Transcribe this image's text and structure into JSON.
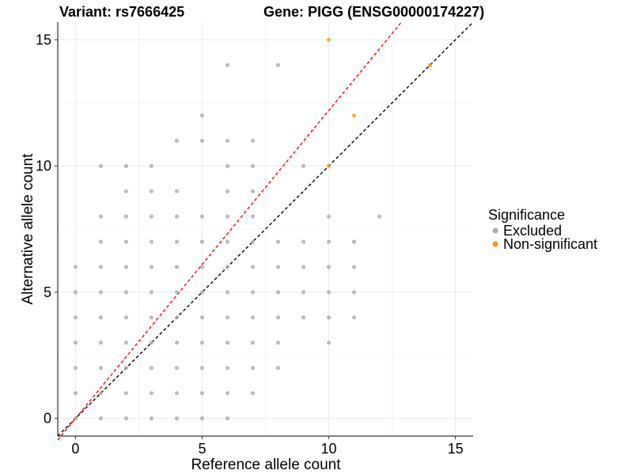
{
  "chart_data": {
    "type": "scatter",
    "title_left": "Variant: rs7666425",
    "title_right": "Gene: PIGG (ENSG00000174227)",
    "xlabel": "Reference allele count",
    "ylabel": "Alternative allele count",
    "xlim": [
      -0.7,
      15.7
    ],
    "ylim": [
      -0.7,
      15.7
    ],
    "x_ticks": [
      0,
      5,
      10,
      15
    ],
    "y_ticks": [
      0,
      5,
      10,
      15
    ],
    "grid": true,
    "legend": {
      "title": "Significance",
      "position": "right",
      "entries": [
        {
          "label": "Excluded",
          "color": "#aaaaaa"
        },
        {
          "label": "Non-significant",
          "color": "#f7941d"
        }
      ]
    },
    "reference_lines": [
      {
        "name": "y = x",
        "slope": 1.0,
        "color": "#000000",
        "style": "dashed"
      },
      {
        "name": "",
        "slope": 1.22,
        "color": "#ff0000",
        "style": "dashed"
      }
    ],
    "series": [
      {
        "name": "Excluded",
        "color": "#aaaaaa",
        "points": [
          [
            0,
            0
          ],
          [
            0,
            1
          ],
          [
            0,
            2
          ],
          [
            0,
            3
          ],
          [
            0,
            4
          ],
          [
            0,
            5
          ],
          [
            0,
            6
          ],
          [
            1,
            0
          ],
          [
            1,
            1
          ],
          [
            1,
            2
          ],
          [
            1,
            3
          ],
          [
            1,
            4
          ],
          [
            1,
            5
          ],
          [
            1,
            6
          ],
          [
            1,
            7
          ],
          [
            1,
            8
          ],
          [
            1,
            10
          ],
          [
            2,
            0
          ],
          [
            2,
            1
          ],
          [
            2,
            2
          ],
          [
            2,
            3
          ],
          [
            2,
            4
          ],
          [
            2,
            5
          ],
          [
            2,
            6
          ],
          [
            2,
            7
          ],
          [
            2,
            8
          ],
          [
            2,
            9
          ],
          [
            2,
            10
          ],
          [
            3,
            0
          ],
          [
            3,
            1
          ],
          [
            3,
            2
          ],
          [
            3,
            3
          ],
          [
            3,
            4
          ],
          [
            3,
            5
          ],
          [
            3,
            6
          ],
          [
            3,
            7
          ],
          [
            3,
            8
          ],
          [
            3,
            9
          ],
          [
            3,
            10
          ],
          [
            4,
            0
          ],
          [
            4,
            1
          ],
          [
            4,
            2
          ],
          [
            4,
            3
          ],
          [
            4,
            4
          ],
          [
            4,
            5
          ],
          [
            4,
            6
          ],
          [
            4,
            7
          ],
          [
            4,
            8
          ],
          [
            4,
            9
          ],
          [
            4,
            11
          ],
          [
            5,
            0
          ],
          [
            5,
            1
          ],
          [
            5,
            2
          ],
          [
            5,
            3
          ],
          [
            5,
            4
          ],
          [
            5,
            5
          ],
          [
            5,
            6
          ],
          [
            5,
            7
          ],
          [
            5,
            8
          ],
          [
            5,
            11
          ],
          [
            5,
            12
          ],
          [
            6,
            0
          ],
          [
            6,
            1
          ],
          [
            6,
            2
          ],
          [
            6,
            3
          ],
          [
            6,
            4
          ],
          [
            6,
            5
          ],
          [
            6,
            6
          ],
          [
            6,
            7
          ],
          [
            6,
            8
          ],
          [
            6,
            9
          ],
          [
            6,
            10
          ],
          [
            6,
            11
          ],
          [
            6,
            14
          ],
          [
            7,
            1
          ],
          [
            7,
            2
          ],
          [
            7,
            3
          ],
          [
            7,
            4
          ],
          [
            7,
            5
          ],
          [
            7,
            6
          ],
          [
            7,
            7
          ],
          [
            7,
            8
          ],
          [
            7,
            9
          ],
          [
            7,
            10
          ],
          [
            7,
            11
          ],
          [
            8,
            2
          ],
          [
            8,
            3
          ],
          [
            8,
            4
          ],
          [
            8,
            5
          ],
          [
            8,
            6
          ],
          [
            8,
            7
          ],
          [
            8,
            14
          ],
          [
            9,
            4
          ],
          [
            9,
            5
          ],
          [
            9,
            6
          ],
          [
            9,
            7
          ],
          [
            9,
            10
          ],
          [
            10,
            3
          ],
          [
            10,
            4
          ],
          [
            10,
            5
          ],
          [
            10,
            6
          ],
          [
            10,
            7
          ],
          [
            10,
            8
          ],
          [
            11,
            4
          ],
          [
            11,
            5
          ],
          [
            11,
            6
          ],
          [
            11,
            7
          ],
          [
            12,
            8
          ]
        ]
      },
      {
        "name": "Non-significant",
        "color": "#f7941d",
        "points": [
          [
            10,
            15
          ],
          [
            11,
            12
          ],
          [
            10,
            10
          ],
          [
            14,
            14
          ]
        ]
      }
    ]
  }
}
